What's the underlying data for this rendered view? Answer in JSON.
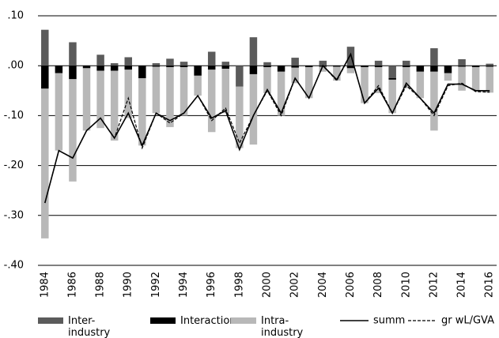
{
  "chart_data": {
    "type": "bar",
    "categories": [
      "1984",
      null,
      "1986",
      null,
      "1988",
      null,
      "1990",
      null,
      "1992",
      null,
      "1994",
      null,
      "1996",
      null,
      "1998",
      null,
      "2000",
      null,
      "2002",
      null,
      "2004",
      null,
      "2006",
      null,
      "2008",
      null,
      "2010",
      null,
      "2012",
      null,
      "2014",
      null,
      "2016"
    ],
    "ylim": [
      -0.4,
      0.1
    ],
    "yticks": [
      {
        "value": 0.1,
        "label": ".10"
      },
      {
        "value": 0,
        "label": ".00"
      },
      {
        "value": -0.1,
        "label": "-.10"
      },
      {
        "value": -0.2,
        "label": "-.20"
      },
      {
        "value": -0.3,
        "label": "-.30"
      },
      {
        "value": -0.4,
        "label": "-.40"
      }
    ],
    "grid": true,
    "series": [
      {
        "name": "Inter-industry",
        "type": "bar",
        "color": "#5b5b5b",
        "values": [
          0.072,
          0,
          0.047,
          0,
          0.022,
          0.005,
          0.017,
          0,
          0.005,
          0.014,
          0.008,
          0,
          0.028,
          0.008,
          -0.042,
          0.057,
          0.007,
          0,
          0.016,
          0,
          0.01,
          0,
          0.038,
          0,
          0.01,
          -0.025,
          0.01,
          0,
          0.035,
          0,
          0.013,
          0,
          0.004
        ]
      },
      {
        "name": "Interaction",
        "type": "bar",
        "color": "#000000",
        "values": [
          -0.046,
          -0.015,
          -0.027,
          -0.005,
          -0.01,
          -0.01,
          -0.008,
          -0.025,
          -0.002,
          -0.003,
          -0.003,
          -0.02,
          -0.008,
          -0.006,
          0,
          -0.017,
          -0.003,
          -0.012,
          -0.004,
          -0.003,
          -0.002,
          -0.002,
          -0.005,
          -0.003,
          -0.003,
          -0.003,
          -0.003,
          -0.012,
          -0.012,
          -0.015,
          -0.002,
          -0.003,
          -0.002
        ]
      },
      {
        "name": "Intra-industry",
        "type": "bar",
        "color": "#b8b8b8",
        "values": [
          -0.3,
          -0.155,
          -0.205,
          -0.125,
          -0.115,
          -0.14,
          -0.097,
          -0.135,
          -0.093,
          -0.12,
          -0.097,
          -0.04,
          -0.125,
          -0.089,
          -0.123,
          -0.141,
          -0.052,
          -0.088,
          -0.031,
          -0.062,
          -0.01,
          -0.028,
          -0.01,
          -0.072,
          -0.052,
          -0.067,
          -0.042,
          -0.053,
          -0.118,
          -0.015,
          -0.048,
          -0.047,
          -0.052
        ]
      },
      {
        "name": "summ",
        "type": "line",
        "color": "#000000",
        "dashed": false,
        "values": [
          -0.275,
          -0.17,
          -0.185,
          -0.13,
          -0.105,
          -0.145,
          -0.095,
          -0.16,
          -0.095,
          -0.11,
          -0.095,
          -0.06,
          -0.105,
          -0.09,
          -0.168,
          -0.1,
          -0.048,
          -0.095,
          -0.025,
          -0.065,
          0,
          -0.028,
          0.023,
          -0.075,
          -0.045,
          -0.095,
          -0.035,
          -0.065,
          -0.095,
          -0.037,
          -0.037,
          -0.05,
          -0.05
        ]
      },
      {
        "name": "gr wL/GVA",
        "type": "line",
        "color": "#000000",
        "dashed": true,
        "values": [
          -0.275,
          -0.17,
          -0.185,
          -0.13,
          -0.105,
          -0.145,
          -0.065,
          -0.165,
          -0.095,
          -0.115,
          -0.095,
          -0.06,
          -0.11,
          -0.085,
          -0.155,
          -0.1,
          -0.05,
          -0.1,
          -0.025,
          -0.065,
          0,
          -0.03,
          0.023,
          -0.075,
          -0.04,
          -0.095,
          -0.04,
          -0.065,
          -0.1,
          -0.04,
          -0.035,
          -0.052,
          -0.053
        ]
      }
    ]
  }
}
